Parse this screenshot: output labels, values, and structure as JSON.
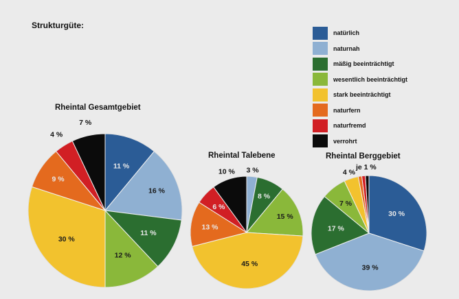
{
  "title": "Strukturgüte:",
  "legend": [
    {
      "label": "natürlich",
      "color": "#2b5c96"
    },
    {
      "label": "naturnah",
      "color": "#8fb0d2"
    },
    {
      "label": "mäßig beeinträchtigt",
      "color": "#2b6e30"
    },
    {
      "label": "wesentlich beeinträchtigt",
      "color": "#8ab83a"
    },
    {
      "label": "stark beeinträchtigt",
      "color": "#f2c22e"
    },
    {
      "label": "naturfern",
      "color": "#e46a1e"
    },
    {
      "label": "naturfremd",
      "color": "#d11f24"
    },
    {
      "label": "verrohrt",
      "color": "#0b0b0b"
    }
  ],
  "chart_data": [
    {
      "type": "pie",
      "title": "Rheintal Gesamtgebiet",
      "categories": [
        "natürlich",
        "naturnah",
        "mäßig beeinträchtigt",
        "wesentlich beeinträchtigt",
        "stark beeinträchtigt",
        "naturfern",
        "naturfremd",
        "verrohrt"
      ],
      "values": [
        11,
        16,
        11,
        12,
        30,
        9,
        4,
        7
      ],
      "labels": [
        "11 %",
        "16 %",
        "11 %",
        "12 %",
        "30 %",
        "9 %",
        "4 %",
        "7 %"
      ]
    },
    {
      "type": "pie",
      "title": "Rheintal Talebene",
      "categories": [
        "natürlich",
        "naturnah",
        "mäßig beeinträchtigt",
        "wesentlich beeinträchtigt",
        "stark beeinträchtigt",
        "naturfern",
        "naturfremd",
        "verrohrt"
      ],
      "values": [
        0,
        3,
        8,
        15,
        45,
        13,
        6,
        10
      ],
      "labels": [
        "",
        "3 %",
        "8 %",
        "15 %",
        "45 %",
        "13 %",
        "6 %",
        "10 %"
      ]
    },
    {
      "type": "pie",
      "title": "Rheintal Berggebiet",
      "categories": [
        "natürlich",
        "naturnah",
        "mäßig beeinträchtigt",
        "wesentlich beeinträchtigt",
        "stark beeinträchtigt",
        "naturfern",
        "naturfremd",
        "verrohrt"
      ],
      "values": [
        30,
        39,
        17,
        7,
        4,
        1,
        1,
        1
      ],
      "labels": [
        "30 %",
        "39 %",
        "17 %",
        "7 %",
        "4 %",
        "",
        "",
        ""
      ],
      "annotation": "je 1 %"
    }
  ]
}
